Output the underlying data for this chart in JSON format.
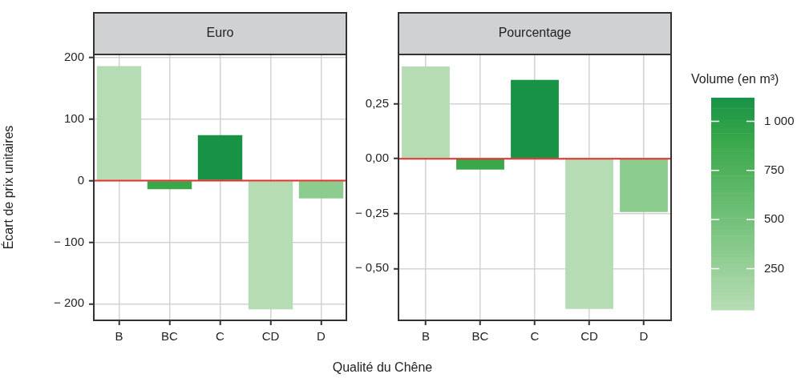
{
  "chart_data": [
    {
      "type": "bar",
      "title": "Euro",
      "ylabel": "Écart de prix unitaires",
      "xlabel": "Qualité du Chêne",
      "categories": [
        "B",
        "BC",
        "C",
        "CD",
        "D"
      ],
      "values": [
        186,
        -14,
        74,
        -209,
        -29
      ],
      "colors": [
        "#b6dcb4",
        "#3aa84a",
        "#189346",
        "#b6dcb4",
        "#8ccc8f"
      ],
      "ylim": [
        -227,
        205
      ],
      "yticks": [
        {
          "value": 200,
          "label": "200"
        },
        {
          "value": 100,
          "label": "100"
        },
        {
          "value": 0,
          "label": "0"
        },
        {
          "value": -100,
          "label": "− 100"
        },
        {
          "value": -200,
          "label": "− 200"
        }
      ],
      "ref_lines": [
        {
          "axis": "y",
          "value": 0,
          "color": "#e8302e"
        }
      ],
      "grid": true,
      "legend": false
    },
    {
      "type": "bar",
      "title": "Pourcentage",
      "categories": [
        "B",
        "BC",
        "C",
        "CD",
        "D"
      ],
      "values": [
        0.42,
        -0.049,
        0.359,
        -0.684,
        -0.243
      ],
      "colors": [
        "#b6dcb4",
        "#3aa84a",
        "#189346",
        "#b6dcb4",
        "#8ccc8f"
      ],
      "cvalues": [
        50,
        900,
        1120,
        50,
        330
      ],
      "ylim": [
        -0.736,
        0.475
      ],
      "yticks": [
        {
          "value": 0.25,
          "label": "0,25"
        },
        {
          "value": 0,
          "label": "0,00"
        },
        {
          "value": -0.25,
          "label": "− 0,25"
        },
        {
          "value": -0.5,
          "label": "− 0,50"
        }
      ],
      "ref_lines": [
        {
          "axis": "y",
          "value": 0,
          "color": "#e8302e"
        }
      ],
      "grid": true,
      "legend": false,
      "clabel": "Volume (en m³)",
      "clim": [
        40,
        1120
      ],
      "cticks": [
        250,
        500,
        750,
        {
          "value": 1000,
          "label": "1 000"
        }
      ]
    }
  ]
}
